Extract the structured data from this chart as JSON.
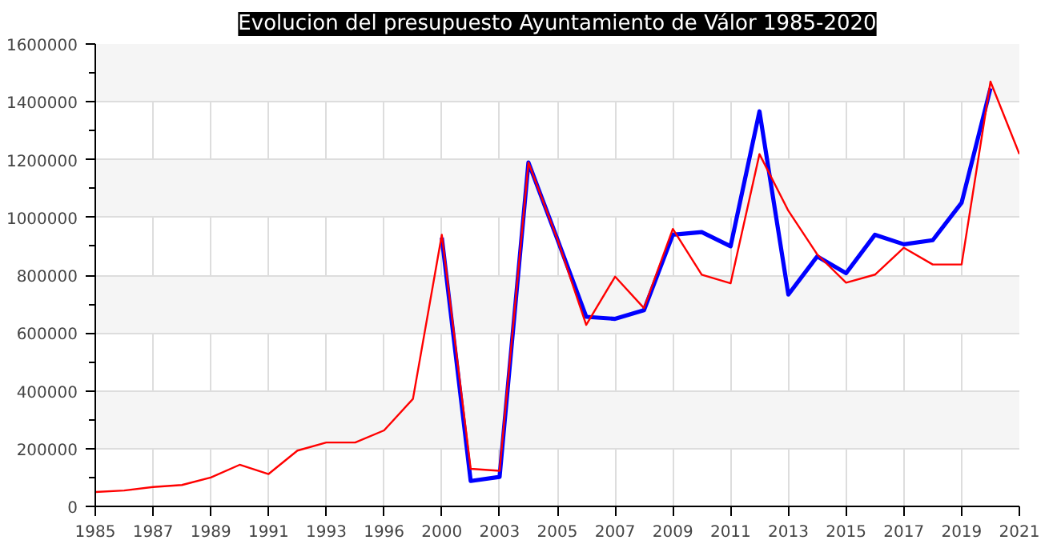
{
  "chart_data": {
    "type": "line",
    "title": "Evolucion del presupuesto Ayuntamiento de Válor 1985-2020",
    "categories": [
      "1985",
      null,
      "1987",
      null,
      "1989",
      null,
      "1991",
      null,
      "1993",
      null,
      "1996",
      null,
      "2000",
      null,
      "2003",
      null,
      "2005",
      null,
      "2007",
      null,
      "2009",
      null,
      "2011",
      null,
      "2013",
      null,
      "2015",
      null,
      "2017",
      null,
      "2019",
      null,
      "2021"
    ],
    "series": [
      {
        "color": "#0000ff",
        "values": [
          null,
          null,
          null,
          null,
          null,
          null,
          null,
          null,
          null,
          null,
          null,
          null,
          930000,
          88000,
          102000,
          1190000,
          925000,
          656000,
          649000,
          679000,
          940000,
          949000,
          900000,
          1367000,
          733000,
          865000,
          807000,
          940000,
          907000,
          921000,
          1051000,
          1447000,
          null
        ]
      },
      {
        "color": "#ff0000",
        "values": [
          50000,
          55000,
          67000,
          74000,
          100000,
          144000,
          112000,
          193000,
          221000,
          221000,
          263000,
          372000,
          940000,
          130000,
          123000,
          1190000,
          925000,
          628000,
          795000,
          686000,
          960000,
          802000,
          772000,
          1219000,
          1023000,
          872000,
          774000,
          802000,
          895000,
          837000,
          837000,
          1470000,
          1219000
        ]
      }
    ],
    "ylim": [
      0,
      1600000
    ],
    "yticks": [
      0,
      200000,
      400000,
      600000,
      800000,
      1000000,
      1200000,
      1400000,
      1600000
    ],
    "grid": true,
    "marker": "none",
    "line_style": "solid"
  }
}
